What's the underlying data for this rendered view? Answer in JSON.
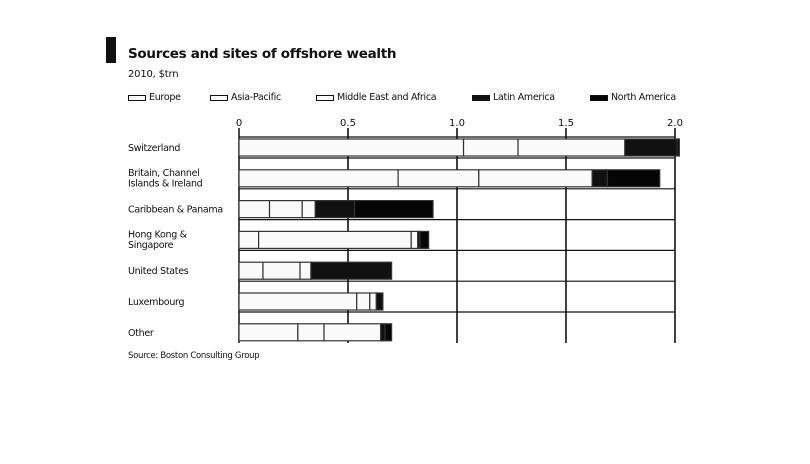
{
  "chart_data": {
    "type": "bar",
    "orientation": "horizontal",
    "stacked": true,
    "title": "Sources and sites of offshore wealth",
    "subtitle": "2010, $trn",
    "source": "Source: Boston Consulting Group",
    "xlim": [
      0,
      2.0
    ],
    "xticks": [
      0,
      0.5,
      1.0,
      1.5,
      2.0
    ],
    "xtick_labels": [
      "0",
      "0.5",
      "1.0",
      "1.5",
      "2.0"
    ],
    "grid": true,
    "legend_position": "top",
    "categories": [
      [
        "Switzerland"
      ],
      [
        "Britain, Channel",
        "Islands & Ireland"
      ],
      [
        "Caribbean & Panama"
      ],
      [
        "Hong Kong &",
        "Singapore"
      ],
      [
        "United States"
      ],
      [
        "Luxembourg"
      ],
      [
        "Other"
      ]
    ],
    "series": [
      {
        "name": "Europe",
        "color": "#fafafa",
        "values": [
          1.03,
          0.73,
          0.14,
          0.09,
          0.11,
          0.54,
          0.27
        ]
      },
      {
        "name": "Asia-Pacific",
        "color": "#fafafa",
        "values": [
          0.25,
          0.37,
          0.15,
          0.7,
          0.17,
          0.06,
          0.12
        ]
      },
      {
        "name": "Middle East and Africa",
        "color": "#fafafa",
        "values": [
          0.49,
          0.52,
          0.06,
          0.03,
          0.05,
          0.03,
          0.26
        ]
      },
      {
        "name": "Latin America",
        "color": "#111111",
        "values": [
          0.24,
          0.07,
          0.18,
          0.01,
          0.37,
          0.03,
          0.02
        ]
      },
      {
        "name": "North America",
        "color": "#050505",
        "values": [
          0.01,
          0.24,
          0.36,
          0.04,
          0.0,
          0.0,
          0.03
        ]
      }
    ]
  }
}
